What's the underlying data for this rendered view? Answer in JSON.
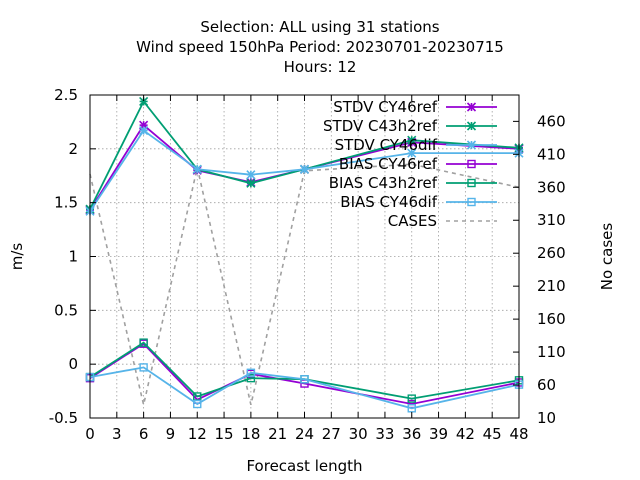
{
  "chart_data": {
    "type": "line",
    "title_lines": [
      "Selection: ALL using    31 stations",
      "Wind speed 150hPa   Period: 20230701-20230715",
      "Hours:  12"
    ],
    "xlabel": "Forecast length",
    "ylabel": "m/s",
    "y2label": "No cases",
    "xlim": [
      0,
      48
    ],
    "ylim": [
      -0.5,
      2.5
    ],
    "y2lim": [
      10,
      500
    ],
    "xticks": [
      "0",
      "3",
      "6",
      "9",
      "12",
      "15",
      "18",
      "21",
      "24",
      "27",
      "30",
      "33",
      "36",
      "39",
      "42",
      "45",
      "48"
    ],
    "yticks": [
      "-0.5",
      "0",
      "0.5",
      "1",
      "1.5",
      "2",
      "2.5"
    ],
    "y2ticks": [
      "10",
      "60",
      "110",
      "160",
      "210",
      "260",
      "310",
      "360",
      "410",
      "460"
    ],
    "grid": true,
    "legend_position": "top-right",
    "x": [
      0,
      6,
      12,
      18,
      24,
      36,
      48
    ],
    "series": [
      {
        "name": "STDV CY46ref",
        "color": "#9400d3",
        "marker": "x-star",
        "axis": "y",
        "values": [
          1.43,
          2.22,
          1.8,
          1.69,
          1.81,
          2.06,
          2.0
        ]
      },
      {
        "name": "STDV C43h2ref",
        "color": "#009e73",
        "marker": "x-star",
        "axis": "y",
        "values": [
          1.44,
          2.44,
          1.81,
          1.68,
          1.81,
          2.08,
          2.01
        ]
      },
      {
        "name": "STDV CY46dif",
        "color": "#56b4e9",
        "marker": "x-star",
        "axis": "y",
        "values": [
          1.42,
          2.17,
          1.81,
          1.76,
          1.81,
          1.96,
          1.96
        ]
      },
      {
        "name": "BIAS CY46ref",
        "color": "#9400d3",
        "marker": "square",
        "axis": "y",
        "values": [
          -0.13,
          0.19,
          -0.33,
          -0.09,
          -0.18,
          -0.37,
          -0.17
        ]
      },
      {
        "name": "BIAS C43h2ref",
        "color": "#009e73",
        "marker": "square",
        "axis": "y",
        "values": [
          -0.12,
          0.2,
          -0.3,
          -0.13,
          -0.14,
          -0.32,
          -0.15
        ]
      },
      {
        "name": "BIAS CY46dif",
        "color": "#56b4e9",
        "marker": "square",
        "axis": "y",
        "values": [
          -0.12,
          -0.03,
          -0.37,
          -0.08,
          -0.14,
          -0.41,
          -0.19
        ]
      },
      {
        "name": "CASES",
        "color": "#a0a0a0",
        "marker": "none",
        "dashed": true,
        "axis": "y2",
        "values": [
          380,
          30,
          390,
          30,
          385,
          395,
          360
        ]
      }
    ]
  }
}
